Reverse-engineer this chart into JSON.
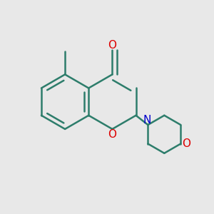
{
  "bg_color": "#e8e8e8",
  "bond_color": "#2d7d6b",
  "oxygen_color": "#dd0000",
  "nitrogen_color": "#0000cc",
  "bond_width": 1.8,
  "figsize": [
    3.0,
    3.0
  ],
  "dpi": 100,
  "xlim": [
    0,
    1
  ],
  "ylim": [
    0,
    1
  ]
}
